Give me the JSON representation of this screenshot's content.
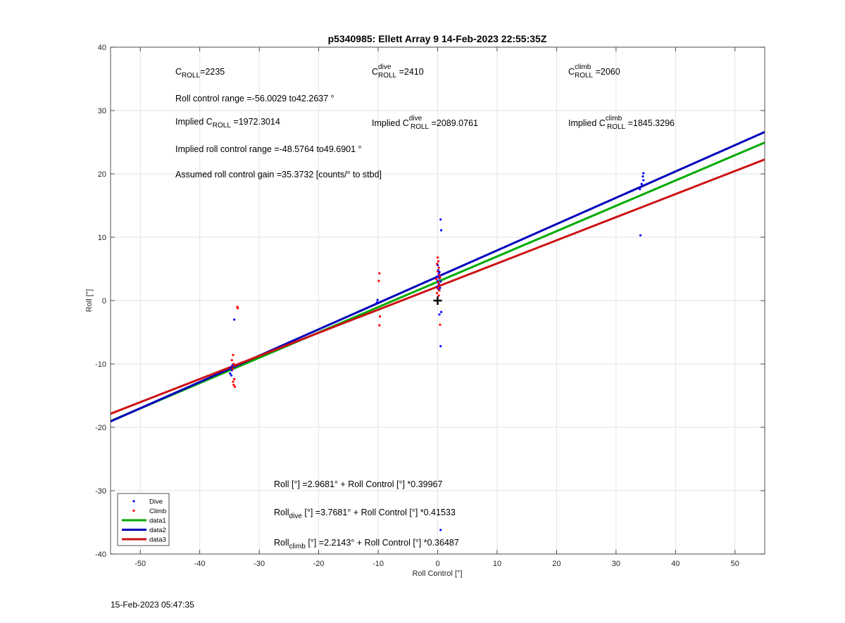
{
  "chart_data": {
    "type": "scatter",
    "title": "p5340985: Ellett Array 9 14-Feb-2023 22:55:35Z",
    "xlabel": "Roll Control [°]",
    "ylabel": "Roll [°]",
    "xlim": [
      -55,
      55
    ],
    "ylim": [
      -40,
      40
    ],
    "xticks": [
      -50,
      -40,
      -30,
      -20,
      -10,
      0,
      10,
      20,
      30,
      40,
      50
    ],
    "yticks": [
      -40,
      -30,
      -20,
      -10,
      0,
      10,
      20,
      30,
      40
    ],
    "grid": true,
    "legend_position": "bottom-left",
    "series": [
      {
        "name": "Dive",
        "kind": "points",
        "color": "#0000ff",
        "points": [
          [
            -34.9,
            -11.5
          ],
          [
            -34.6,
            -11.0
          ],
          [
            -34.8,
            -10.6
          ],
          [
            -34.5,
            -10.2
          ],
          [
            -34.7,
            -11.8
          ],
          [
            -34.2,
            -3.0
          ],
          [
            -10.1,
            0.1
          ],
          [
            -10.2,
            -0.3
          ],
          [
            0.0,
            5.6
          ],
          [
            0.1,
            4.8
          ],
          [
            0.2,
            4.2
          ],
          [
            -0.1,
            3.8
          ],
          [
            0.3,
            3.5
          ],
          [
            0.0,
            3.1
          ],
          [
            0.2,
            2.6
          ],
          [
            -0.1,
            2.2
          ],
          [
            0.1,
            1.8
          ],
          [
            0.3,
            4.5
          ],
          [
            0.5,
            3.0
          ],
          [
            0.4,
            2.0
          ],
          [
            0.5,
            12.8
          ],
          [
            0.6,
            11.1
          ],
          [
            0.3,
            -2.2
          ],
          [
            0.6,
            -1.8
          ],
          [
            0.5,
            -7.2
          ],
          [
            0.5,
            -36.2
          ],
          [
            34.0,
            17.6
          ],
          [
            34.3,
            18.4
          ],
          [
            34.6,
            19.0
          ],
          [
            34.5,
            19.6
          ],
          [
            34.6,
            20.1
          ],
          [
            34.1,
            10.3
          ]
        ]
      },
      {
        "name": "Climb",
        "kind": "points",
        "color": "#ff0000",
        "points": [
          [
            -33.7,
            -1.0
          ],
          [
            -33.6,
            -1.2
          ],
          [
            -34.4,
            -8.6
          ],
          [
            -34.6,
            -9.4
          ],
          [
            -34.3,
            -10.0
          ],
          [
            -34.5,
            -10.8
          ],
          [
            -34.2,
            -12.4
          ],
          [
            -34.4,
            -12.8
          ],
          [
            -34.3,
            -13.3
          ],
          [
            -34.1,
            -13.6
          ],
          [
            -9.8,
            4.3
          ],
          [
            -9.9,
            3.1
          ],
          [
            -9.7,
            -2.5
          ],
          [
            -9.8,
            -3.9
          ],
          [
            0.0,
            6.8
          ],
          [
            0.1,
            6.2
          ],
          [
            -0.1,
            5.8
          ],
          [
            0.2,
            5.2
          ],
          [
            0.0,
            4.6
          ],
          [
            0.3,
            4.0
          ],
          [
            -0.2,
            3.4
          ],
          [
            0.1,
            2.9
          ],
          [
            0.2,
            2.4
          ],
          [
            0.0,
            2.0
          ],
          [
            0.3,
            1.6
          ],
          [
            -0.1,
            1.2
          ],
          [
            0.2,
            0.8
          ],
          [
            0.4,
            3.6
          ],
          [
            0.4,
            -3.8
          ]
        ]
      },
      {
        "name": "data1",
        "kind": "line",
        "color": "#00aa00",
        "intercept": 2.9681,
        "slope": 0.39967
      },
      {
        "name": "data2",
        "kind": "line",
        "color": "#0000bb",
        "intercept": 3.7681,
        "slope": 0.41533
      },
      {
        "name": "data3",
        "kind": "line",
        "color": "#cc1111",
        "intercept": 2.2143,
        "slope": 0.36487
      }
    ],
    "origin_marker": [
      0,
      0
    ],
    "annotations": {
      "c_roll": {
        "base": "C",
        "sub": "ROLL",
        "value": "=2235"
      },
      "c_roll_dive": {
        "base": "C",
        "sup": "dive",
        "sub": "ROLL",
        "value": " =2410"
      },
      "c_roll_climb": {
        "base": "C",
        "sup": "climb",
        "sub": "ROLL",
        "value": " =2060"
      },
      "roll_range": "Roll control range =-56.0029 to42.2637 °",
      "implied_c_roll": {
        "prefix": "Implied C",
        "sub": "ROLL",
        "value": " =1972.3014"
      },
      "implied_c_roll_dive": {
        "prefix": "Implied C",
        "sup": "dive",
        "sub": "ROLL",
        "value": " =2089.0761"
      },
      "implied_c_roll_climb": {
        "prefix": "Implied C",
        "sup": "climb",
        "sub": "ROLL",
        "value": " =1845.3296"
      },
      "implied_range": "Implied roll control range =-48.5764 to49.6901 °",
      "gain": "Assumed roll control gain =35.3732 [counts/° to stbd]",
      "fit_all": "Roll [°] =2.9681° + Roll Control [°] *0.39967",
      "fit_dive": {
        "prefix": "Roll",
        "sub": "dive",
        "rest": " [°] =3.7681° + Roll Control [°] *0.41533"
      },
      "fit_climb": {
        "prefix": "Roll",
        "sub": "climb",
        "rest": " [°] =2.2143° + Roll Control [°] *0.36487"
      }
    }
  },
  "footer": {
    "timestamp": "15-Feb-2023 05:47:35"
  }
}
